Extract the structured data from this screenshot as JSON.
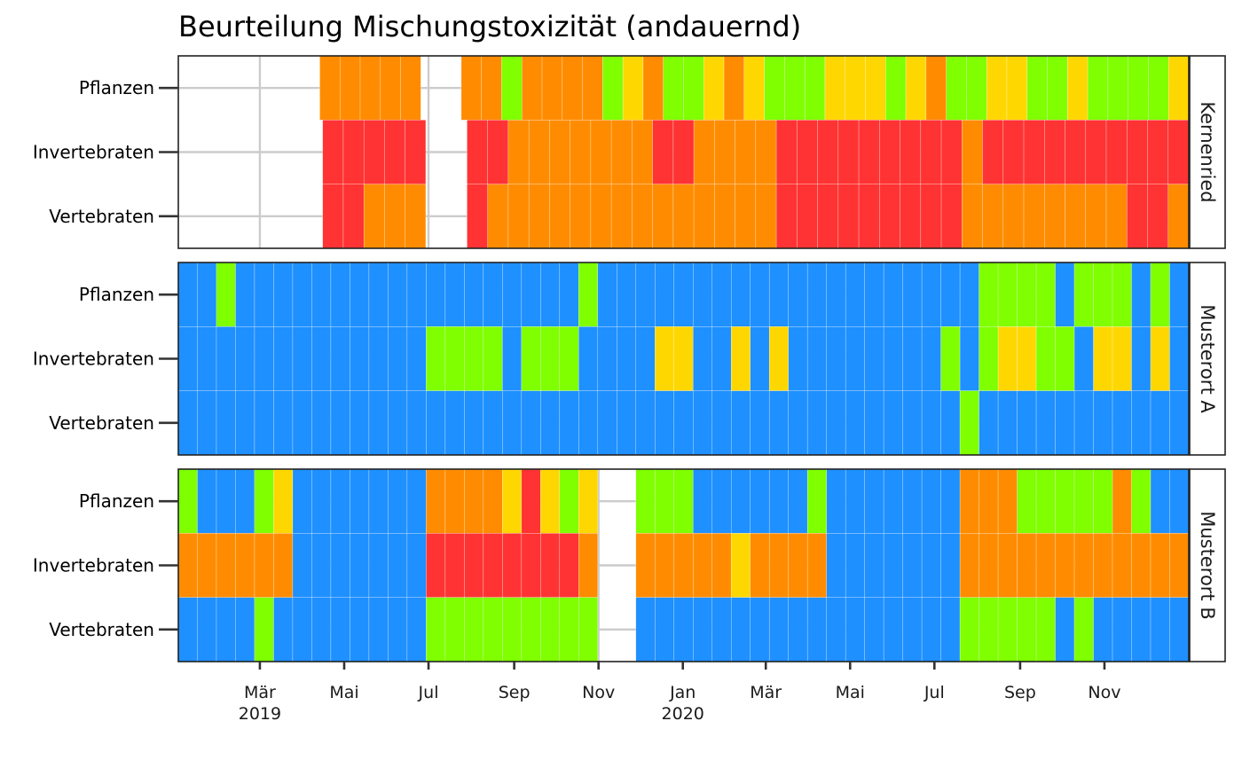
{
  "chart_data": {
    "type": "heatmap",
    "title": "Beurteilung Mischungstoxizität (andauernd)",
    "row_labels": [
      "Pflanzen",
      "Invertebraten",
      "Vertebraten"
    ],
    "x_tick_labels": [
      {
        "label": "Mär",
        "sub": "2019",
        "date": "2019-03-01"
      },
      {
        "label": "Mai",
        "sub": "",
        "date": "2019-05-01"
      },
      {
        "label": "Jul",
        "sub": "",
        "date": "2019-07-01"
      },
      {
        "label": "Sep",
        "sub": "",
        "date": "2019-09-01"
      },
      {
        "label": "Nov",
        "sub": "",
        "date": "2019-11-01"
      },
      {
        "label": "Jan",
        "sub": "2020",
        "date": "2020-01-01"
      },
      {
        "label": "Mär",
        "sub": "",
        "date": "2020-03-01"
      },
      {
        "label": "Mai",
        "sub": "",
        "date": "2020-05-01"
      },
      {
        "label": "Jul",
        "sub": "",
        "date": "2020-07-01"
      },
      {
        "label": "Sep",
        "sub": "",
        "date": "2020-09-01"
      },
      {
        "label": "Nov",
        "sub": "",
        "date": "2020-11-01"
      }
    ],
    "x_range": [
      "2019-01-01",
      "2020-12-31"
    ],
    "colors": {
      "B": "#1e90ff",
      "G": "#7fff00",
      "Y": "#ffd700",
      "O": "#ff8c00",
      "R": "#ff3333"
    },
    "grid": true,
    "facets": [
      {
        "name": "Kernenried",
        "rows": [
          "_______OOOOO__OOGOOOOGYOGGYOYGGGYYYGYOGGYYGGYGGGGY",
          "_______RRRRR__RROOOOOOORROOOORRRRRRRRRORRRRRRRRRR",
          "_______RROOO__ROOOOOOOOOOOOOORRRRRRRRROOOOOOOORRO"
        ]
      },
      {
        "name": "Musterort A",
        "rows": [
          "BBGBBBBBBBBBBBBBBBBBBGBBBBBBBBBBBBBBBBBBBBGGGGBGGGBGB",
          "BBBBBBBBBBBBBGGGGBGGGBBBBYYBBYBYBBBBBBBBGBGYYGGBYYBYB",
          "BBBBBBBBBBBBBBBBBBBBBBBBBBBBBBBBBBBBBBBBBGBBBBBBBBBBB"
        ]
      },
      {
        "name": "Musterort B",
        "rows": [
          "GBBBGYBBBBBBBOOOOYRYGY__GGGBBBBBBGBBBBBBBOOOGGGGGOGBB",
          "OOOOOOBBBBBBBRRRRRRRRO__OOOOOYOOOOBBBBBBBOOOOOOOOOOOO",
          "BBBBGBBBBBBBBGGGGGGGGG__BBBBBBBBBBBBBBBBBGGGGGBGBBBBB"
        ]
      }
    ]
  }
}
